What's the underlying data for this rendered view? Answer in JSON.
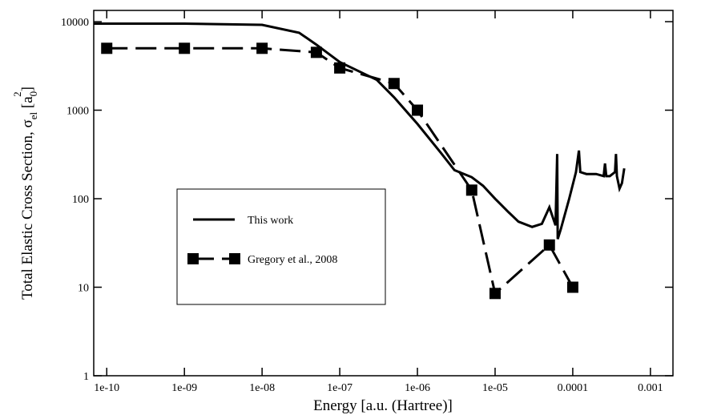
{
  "chart_data": {
    "type": "line",
    "x_label": "Energy [a.u. (Hartree)]",
    "y_label": [
      "Total Elastic Cross Section, σ",
      "el",
      " [a",
      "0",
      "2",
      "]"
    ],
    "xlog": true,
    "ylog": true,
    "xlim": [
      6.8e-11,
      0.00195
    ],
    "ylim": [
      1,
      13400
    ],
    "xticks": [
      {
        "value": 1e-10,
        "label": "1e-10"
      },
      {
        "value": 1e-09,
        "label": "1e-09"
      },
      {
        "value": 1e-08,
        "label": "1e-08"
      },
      {
        "value": 1e-07,
        "label": "1e-07"
      },
      {
        "value": 1e-06,
        "label": "1e-06"
      },
      {
        "value": 1e-05,
        "label": "1e-05"
      },
      {
        "value": 0.0001,
        "label": "0.0001"
      },
      {
        "value": 0.001,
        "label": "0.001"
      }
    ],
    "yticks": [
      1,
      10,
      100,
      1000,
      10000
    ],
    "series": [
      {
        "name": "This work",
        "color": "#000000",
        "dash": false,
        "markers": false,
        "x": [
          6.8e-11,
          1e-09,
          1e-08,
          3e-08,
          5e-08,
          1e-07,
          3e-07,
          5e-07,
          1e-06,
          2e-06,
          3e-06,
          5e-06,
          7e-06,
          1e-05,
          1.5e-05,
          2e-05,
          3e-05,
          4e-05,
          5e-05,
          6e-05,
          6.3e-05,
          6.4e-05,
          7e-05,
          9e-05,
          0.00011,
          0.00012,
          0.000125,
          0.00015,
          0.0002,
          0.00025,
          0.00026,
          0.00027,
          0.0003,
          0.00035,
          0.00036,
          0.00037,
          0.0004,
          0.00043,
          0.00046
        ],
        "values": [
          9500,
          9500,
          9200,
          7500,
          5500,
          3500,
          2200,
          1400,
          700,
          330,
          210,
          175,
          140,
          100,
          70,
          55,
          48,
          52,
          80,
          50,
          320,
          35,
          45,
          100,
          200,
          350,
          200,
          190,
          190,
          180,
          250,
          180,
          180,
          200,
          320,
          180,
          130,
          150,
          220
        ]
      },
      {
        "name": "Gregory et al., 2008",
        "color": "#000000",
        "dash": true,
        "markers": true,
        "x": [
          1e-10,
          1e-09,
          1e-08,
          5e-08,
          1e-07,
          5e-07,
          1e-06,
          5e-06,
          1e-05,
          5e-05,
          0.0001
        ],
        "values": [
          5000,
          5000,
          5000,
          4500,
          3000,
          2000,
          1000,
          125,
          8.5,
          30,
          10
        ]
      }
    ]
  }
}
